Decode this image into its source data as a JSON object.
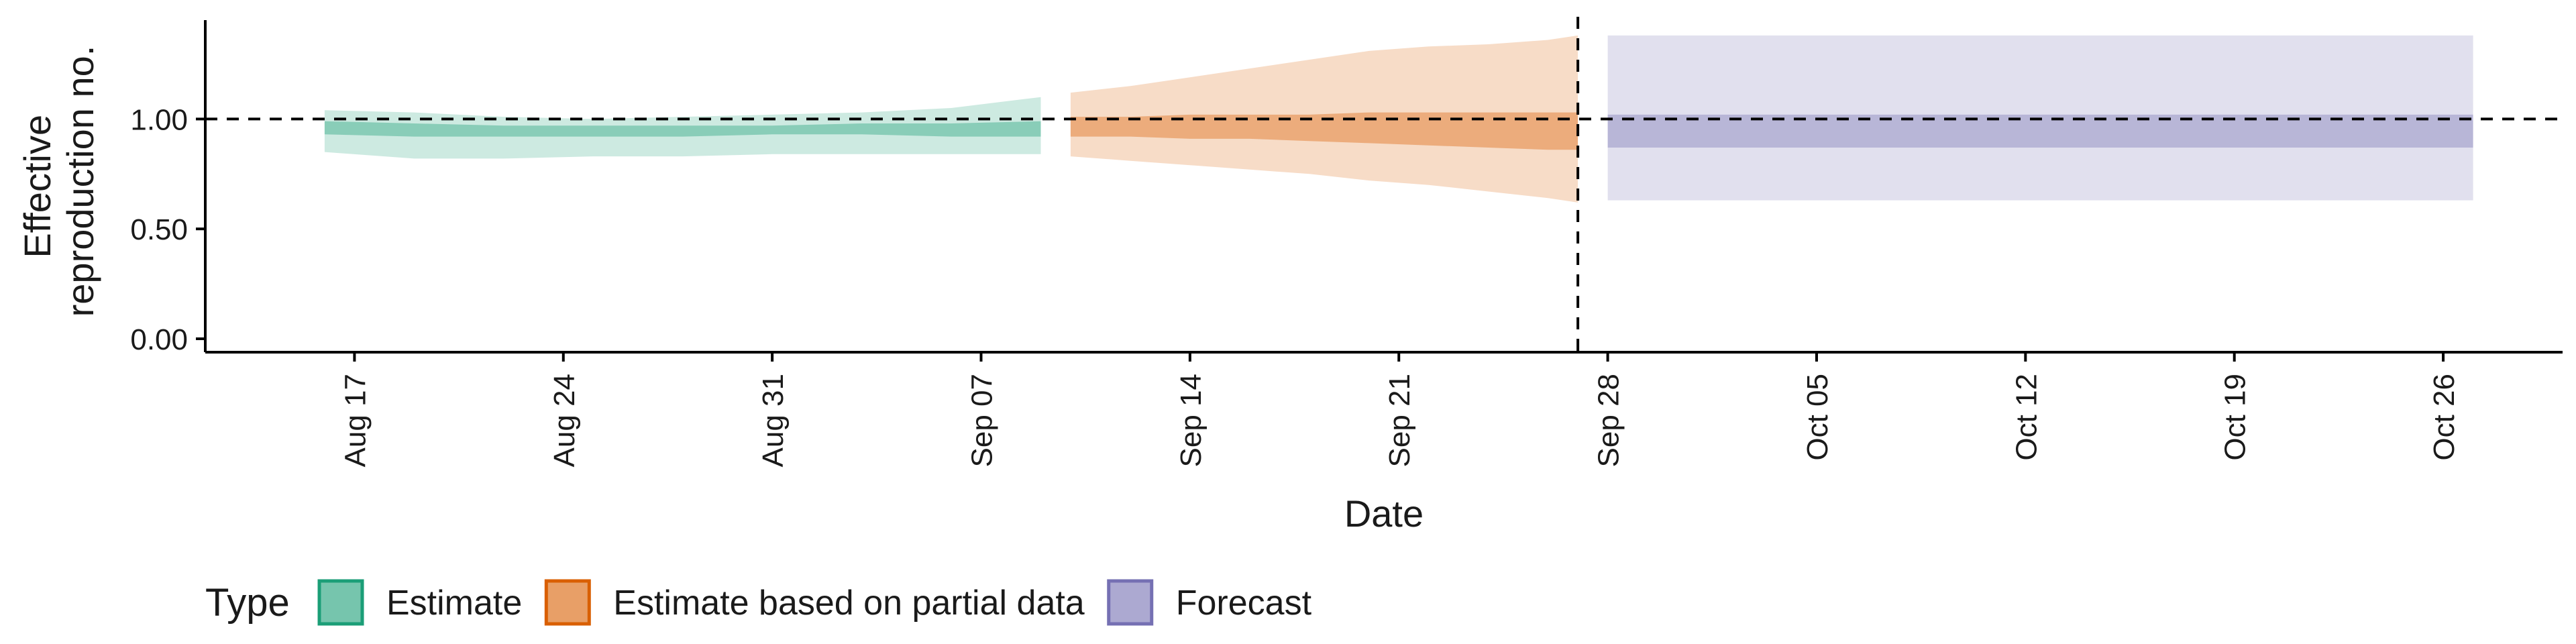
{
  "chart_data": {
    "type": "area",
    "xlabel": "Date",
    "ylabel_lines": [
      "Effective",
      "reproduction no."
    ],
    "ylim": [
      0,
      1.45
    ],
    "yticks": [
      0,
      0.5,
      1.0
    ],
    "ytick_labels": [
      "0.00",
      "0.50",
      "1.00"
    ],
    "xlim": [
      "2020-08-12",
      "2020-10-30"
    ],
    "xticks": [
      "2020-08-17",
      "2020-08-24",
      "2020-08-31",
      "2020-09-07",
      "2020-09-14",
      "2020-09-21",
      "2020-09-28",
      "2020-10-05",
      "2020-10-12",
      "2020-10-19",
      "2020-10-26"
    ],
    "xtick_labels": [
      "Aug 17",
      "Aug 24",
      "Aug 31",
      "Sep 07",
      "Sep 14",
      "Sep 21",
      "Sep 28",
      "Oct 05",
      "Oct 12",
      "Oct 19",
      "Oct 26"
    ],
    "reference_hline": 1.0,
    "reference_vline": "2020-09-27",
    "legend": {
      "title": "Type",
      "position": "bottom-left",
      "items": [
        {
          "label": "Estimate",
          "fill": "#1b9e77",
          "border": "#1b9e77"
        },
        {
          "label": "Estimate based on partial data",
          "fill": "#d95f02",
          "border": "#d95f02"
        },
        {
          "label": "Forecast",
          "fill": "#7570b3",
          "border": "#7570b3"
        }
      ]
    },
    "series": [
      {
        "name": "Estimate",
        "color": "#1b9e77",
        "x": [
          "2020-08-16",
          "2020-08-19",
          "2020-08-22",
          "2020-08-25",
          "2020-08-28",
          "2020-08-31",
          "2020-09-03",
          "2020-09-06",
          "2020-09-09"
        ],
        "outer_upper": [
          1.04,
          1.03,
          1.01,
          1.0,
          1.01,
          1.02,
          1.03,
          1.05,
          1.1
        ],
        "outer_lower": [
          0.85,
          0.82,
          0.82,
          0.83,
          0.83,
          0.84,
          0.84,
          0.84,
          0.84
        ],
        "inner_upper": [
          0.99,
          0.98,
          0.97,
          0.97,
          0.97,
          0.97,
          0.98,
          0.98,
          0.99
        ],
        "inner_lower": [
          0.93,
          0.92,
          0.92,
          0.92,
          0.92,
          0.93,
          0.93,
          0.92,
          0.92
        ]
      },
      {
        "name": "Estimate based on partial data",
        "color": "#d95f02",
        "x": [
          "2020-09-10",
          "2020-09-12",
          "2020-09-14",
          "2020-09-16",
          "2020-09-18",
          "2020-09-20",
          "2020-09-22",
          "2020-09-24",
          "2020-09-26",
          "2020-09-27"
        ],
        "outer_upper": [
          1.12,
          1.15,
          1.19,
          1.23,
          1.27,
          1.31,
          1.33,
          1.34,
          1.36,
          1.38
        ],
        "outer_lower": [
          0.83,
          0.81,
          0.79,
          0.77,
          0.75,
          0.72,
          0.7,
          0.67,
          0.64,
          0.62
        ],
        "inner_upper": [
          1.01,
          1.01,
          1.02,
          1.02,
          1.02,
          1.03,
          1.03,
          1.03,
          1.03,
          1.03
        ],
        "inner_lower": [
          0.92,
          0.92,
          0.91,
          0.91,
          0.9,
          0.89,
          0.88,
          0.87,
          0.86,
          0.86
        ]
      },
      {
        "name": "Forecast",
        "color": "#7570b3",
        "x": [
          "2020-09-28",
          "2020-10-27"
        ],
        "outer_upper": [
          1.38,
          1.38
        ],
        "outer_lower": [
          0.63,
          0.63
        ],
        "inner_upper": [
          1.02,
          1.02
        ],
        "inner_lower": [
          0.87,
          0.87
        ]
      }
    ]
  }
}
